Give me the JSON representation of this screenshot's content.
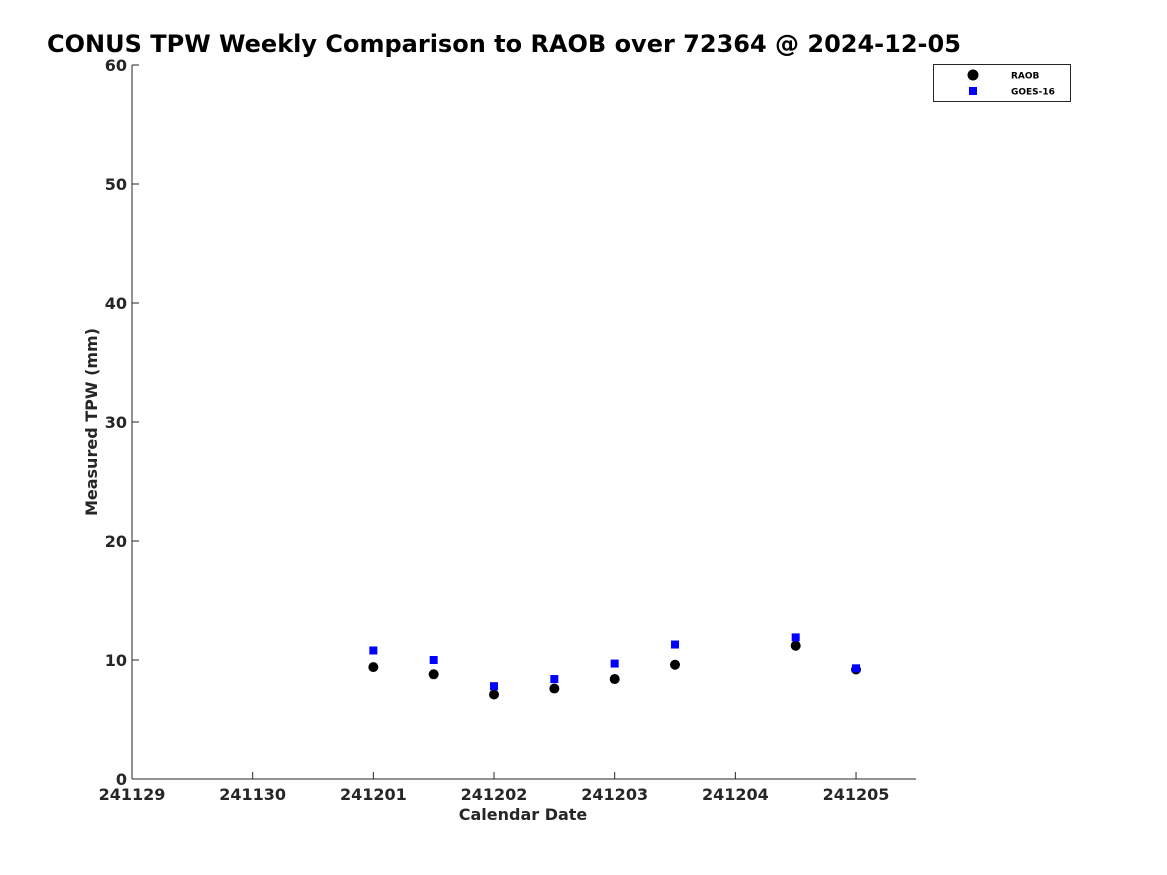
{
  "chart_data": {
    "type": "scatter",
    "title": "CONUS TPW Weekly Comparison to RAOB over 72364 @ 2024-12-05",
    "xlabel": "Calendar Date",
    "ylabel": "Measured TPW (mm)",
    "x_tick_labels": [
      "241129",
      "241130",
      "241201",
      "241202",
      "241203",
      "241204",
      "241205"
    ],
    "y_ticks": [
      0,
      10,
      20,
      30,
      40,
      50,
      60
    ],
    "ylim": [
      0,
      60
    ],
    "xlim": [
      "241129 00Z",
      "241205 12Z"
    ],
    "grid": false,
    "legend_position": "top-right",
    "series": [
      {
        "name": "RAOB",
        "marker": "circle",
        "color": "#000000",
        "points": [
          {
            "x": "241201 00Z",
            "y": 9.4
          },
          {
            "x": "241201 12Z",
            "y": 8.8
          },
          {
            "x": "241202 00Z",
            "y": 7.1
          },
          {
            "x": "241202 12Z",
            "y": 7.6
          },
          {
            "x": "241203 00Z",
            "y": 8.4
          },
          {
            "x": "241203 12Z",
            "y": 9.6
          },
          {
            "x": "241204 12Z",
            "y": 11.2
          },
          {
            "x": "241205 00Z",
            "y": 9.2
          }
        ]
      },
      {
        "name": "GOES-16",
        "marker": "square",
        "color": "#0000ff",
        "points": [
          {
            "x": "241201 00Z",
            "y": 10.8
          },
          {
            "x": "241201 12Z",
            "y": 10.0
          },
          {
            "x": "241202 00Z",
            "y": 7.8
          },
          {
            "x": "241202 12Z",
            "y": 8.4
          },
          {
            "x": "241203 00Z",
            "y": 9.7
          },
          {
            "x": "241203 12Z",
            "y": 11.3
          },
          {
            "x": "241204 12Z",
            "y": 11.9
          },
          {
            "x": "241205 00Z",
            "y": 9.3
          }
        ]
      }
    ]
  }
}
